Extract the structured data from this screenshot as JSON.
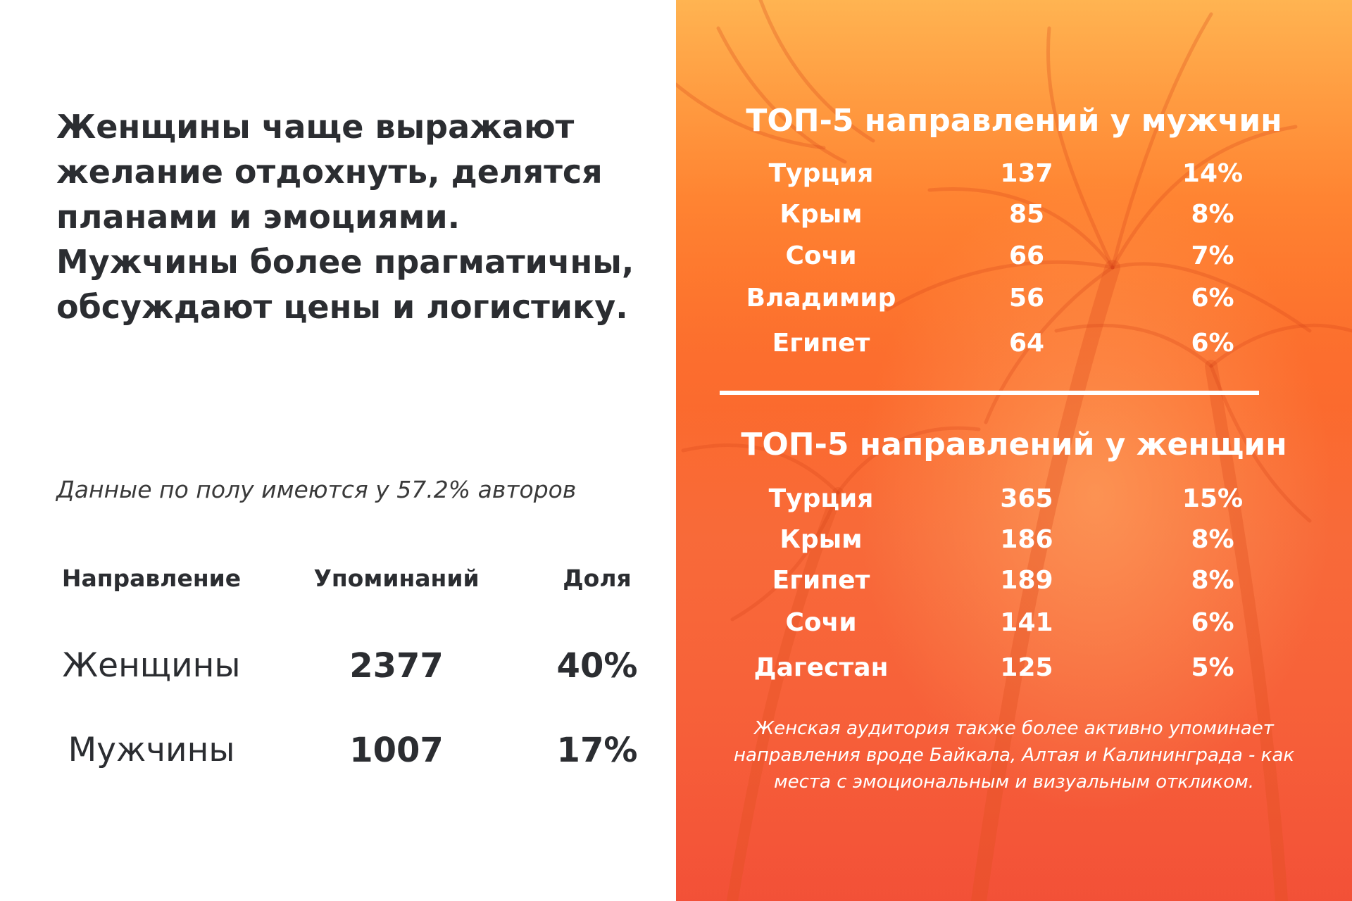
{
  "left": {
    "heading_lines": [
      "Женщины чаще выражают",
      "желание отдохнуть, делятся",
      "планами и эмоциями.",
      "Мужчины более прагматичны,",
      "обсуждают цены и логистику."
    ],
    "note": "Данные по полу имеются у 57.2% авторов",
    "gender_table": {
      "headers": [
        "Направление",
        "Упоминаний",
        "Доля"
      ],
      "rows": [
        [
          "Женщины",
          "2377",
          "40%"
        ],
        [
          "Мужчины",
          "1007",
          "17%"
        ]
      ]
    }
  },
  "right": {
    "men": {
      "title": "ТОП-5 направлений у мужчин",
      "rows": [
        [
          "Турция",
          "137",
          "14%"
        ],
        [
          "Крым",
          "85",
          "8%"
        ],
        [
          "Сочи",
          "66",
          "7%"
        ],
        [
          "Владимир",
          "56",
          "6%"
        ],
        [
          "Египет",
          "64",
          "6%"
        ]
      ]
    },
    "women": {
      "title": "ТОП-5 направлений у женщин",
      "rows": [
        [
          "Турция",
          "365",
          "15%"
        ],
        [
          "Крым",
          "186",
          "8%"
        ],
        [
          "Египет",
          "189",
          "8%"
        ],
        [
          "Сочи",
          "141",
          "6%"
        ],
        [
          "Дагестан",
          "125",
          "5%"
        ]
      ]
    },
    "footnote_lines": [
      "Женская аудитория также более активно упоминает",
      "направления вроде Байкала, Алтая и Калининграда - как",
      "места с эмоциональным и визуальным откликом."
    ],
    "background_image": "palm-trees-photo"
  },
  "colors": {
    "text_dark": "#2b2d31",
    "panel_top": "#ff9a3d",
    "panel_bottom": "#f6563a",
    "panel_text": "#ffffff"
  }
}
